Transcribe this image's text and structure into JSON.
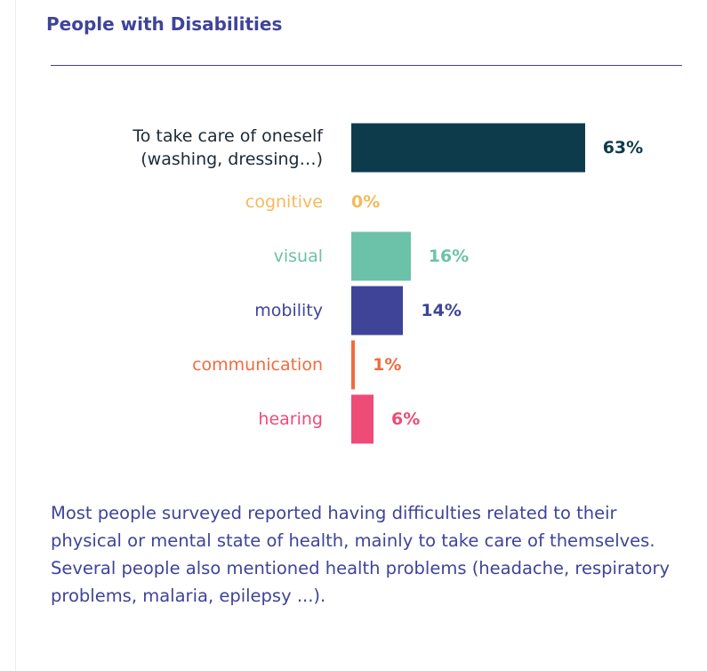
{
  "chart_data": {
    "type": "bar",
    "orientation": "horizontal",
    "title": "People with Disabilities",
    "categories": [
      "To take care of oneself\n(washing, dressing…)",
      "cognitive",
      "visual",
      "mobility",
      "communication",
      "hearing"
    ],
    "values": [
      63,
      0,
      16,
      14,
      1,
      6
    ],
    "value_labels": [
      "63%",
      "0%",
      "16%",
      "14%",
      "1%",
      "6%"
    ],
    "colors": [
      "#0d3b4c",
      "#f5b95a",
      "#6cc2a8",
      "#3f4498",
      "#f26a3d",
      "#ee4b76"
    ],
    "annotation": "Most people surveyed reported having difficulties related to their physical or mental state of health, mainly to take care of themselves. Several people also mentioned health problems (headache, respiratory problems, malaria, epilepsy ...)."
  }
}
